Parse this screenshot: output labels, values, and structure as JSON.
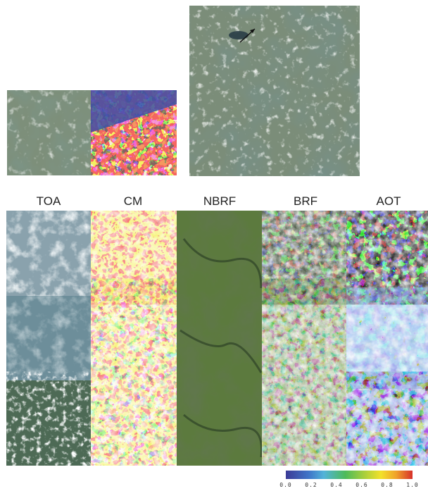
{
  "column_labels": [
    "TOA",
    "CM",
    "NBRF",
    "BRF",
    "AOT"
  ],
  "colorbar": {
    "ticks": [
      "0.0",
      "0.2",
      "0.4",
      "0.6",
      "0.8",
      "1.0"
    ],
    "colors": [
      "#3b3a96",
      "#3f74c8",
      "#52b3d9",
      "#4dbb5a",
      "#a9cf3a",
      "#f2e12a",
      "#f0a22a",
      "#d7302a"
    ]
  },
  "palette": {
    "cm_clear": "#3d4fa8",
    "cm_cloud": "#e8221e",
    "cm_edge": "#e8e01e",
    "satellite_green": "#4e6d3d",
    "satellite_haze": "#8fa6a8",
    "brf_dark": "#0a0f06"
  }
}
